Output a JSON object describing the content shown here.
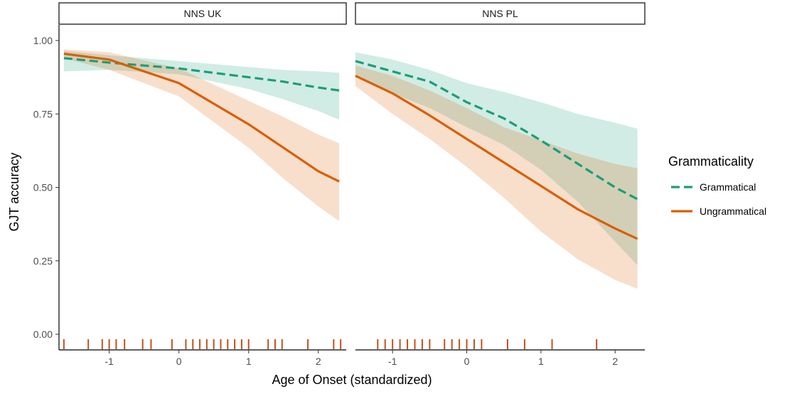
{
  "chart_data": {
    "type": "line",
    "ylabel": "GJT accuracy",
    "xlabel": "Age of Onset (standardized)",
    "ylim": [
      0,
      1
    ],
    "yticks": [
      "0.00",
      "0.25",
      "0.50",
      "0.75",
      "1.00"
    ],
    "ytick_values": [
      0,
      0.25,
      0.5,
      0.75,
      1.0
    ],
    "xticks": [
      "-1",
      "0",
      "1",
      "2"
    ],
    "xtick_values": [
      -1,
      0,
      1,
      2
    ],
    "legend": {
      "title": "Grammaticality",
      "position": "right",
      "entries": [
        {
          "label": "Grammatical",
          "color": "#1b9e77",
          "dash": "dashed"
        },
        {
          "label": "Ungrammatical",
          "color": "#d95f02",
          "dash": "solid"
        }
      ]
    },
    "grid": false,
    "panels": [
      {
        "strip": "NNS UK",
        "xlim": [
          -1.72,
          2.4
        ],
        "series": [
          {
            "name": "Grammatical",
            "x": [
              -1.65,
              -1.0,
              0.0,
              1.0,
              1.5,
              2.0,
              2.3
            ],
            "y": [
              0.94,
              0.925,
              0.905,
              0.875,
              0.86,
              0.84,
              0.83
            ],
            "lower": [
              0.895,
              0.9,
              0.885,
              0.835,
              0.8,
              0.76,
              0.73
            ],
            "upper": [
              0.965,
              0.95,
              0.93,
              0.91,
              0.9,
              0.895,
              0.89
            ]
          },
          {
            "name": "Ungrammatical",
            "x": [
              -1.65,
              -1.0,
              0.0,
              1.0,
              1.5,
              2.0,
              2.3
            ],
            "y": [
              0.955,
              0.935,
              0.855,
              0.715,
              0.635,
              0.555,
              0.52
            ],
            "lower": [
              0.94,
              0.9,
              0.81,
              0.635,
              0.53,
              0.435,
              0.385
            ],
            "upper": [
              0.97,
              0.96,
              0.905,
              0.795,
              0.74,
              0.68,
              0.65
            ]
          }
        ],
        "rug": [
          -1.65,
          -1.3,
          -1.1,
          -1.0,
          -0.9,
          -0.78,
          -0.52,
          -0.4,
          -0.1,
          0.1,
          0.2,
          0.3,
          0.4,
          0.5,
          0.6,
          0.7,
          0.8,
          0.9,
          1.0,
          1.28,
          1.38,
          1.48,
          1.85,
          2.22,
          2.32
        ]
      },
      {
        "strip": "NNS PL",
        "xlim": [
          -1.5,
          2.4
        ],
        "series": [
          {
            "name": "Grammatical",
            "x": [
              -1.5,
              -1.0,
              -0.5,
              0.0,
              0.5,
              1.0,
              1.5,
              2.0,
              2.3
            ],
            "y": [
              0.93,
              0.895,
              0.86,
              0.79,
              0.735,
              0.66,
              0.58,
              0.5,
              0.46
            ],
            "lower": [
              0.885,
              0.82,
              0.77,
              0.705,
              0.645,
              0.56,
              0.45,
              0.315,
              0.235
            ],
            "upper": [
              0.96,
              0.935,
              0.9,
              0.855,
              0.825,
              0.79,
              0.75,
              0.72,
              0.7
            ]
          },
          {
            "name": "Ungrammatical",
            "x": [
              -1.5,
              -1.0,
              -0.5,
              0.0,
              0.5,
              1.0,
              1.5,
              2.0,
              2.3
            ],
            "y": [
              0.88,
              0.82,
              0.745,
              0.665,
              0.585,
              0.505,
              0.425,
              0.36,
              0.325
            ],
            "lower": [
              0.845,
              0.75,
              0.665,
              0.57,
              0.465,
              0.35,
              0.255,
              0.185,
              0.155
            ],
            "upper": [
              0.915,
              0.88,
              0.83,
              0.77,
              0.705,
              0.66,
              0.615,
              0.58,
              0.565
            ]
          }
        ],
        "rug": [
          -1.2,
          -1.1,
          -1.0,
          -0.9,
          -0.8,
          -0.7,
          -0.6,
          -0.5,
          -0.3,
          -0.2,
          -0.1,
          0.0,
          0.1,
          0.2,
          0.55,
          0.78,
          1.15,
          1.75
        ]
      }
    ],
    "rug_color": "#c0531a",
    "band_alpha": 0.2
  }
}
